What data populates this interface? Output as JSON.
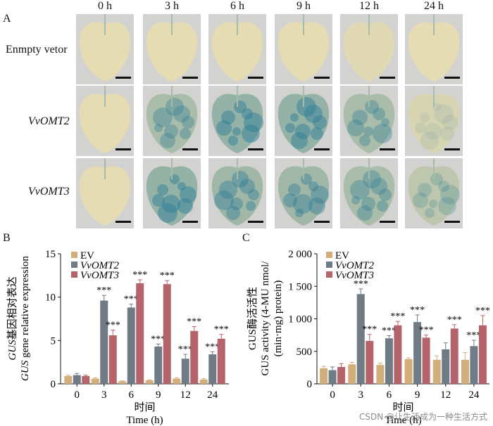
{
  "panel_a": {
    "letter": "A",
    "time_points": [
      "0 h",
      "3 h",
      "6 h",
      "9 h",
      "12 h",
      "24 h"
    ],
    "rows": [
      {
        "label": "Enmpty vetor",
        "italic": false,
        "stain": [
          0,
          0,
          0,
          0,
          0.05,
          0
        ]
      },
      {
        "label": "VvOMT2",
        "italic": true,
        "stain": [
          0,
          0.6,
          0.8,
          0.8,
          0.6,
          0.15
        ]
      },
      {
        "label": "VvOMT3",
        "italic": true,
        "stain": [
          0,
          0.8,
          0.7,
          0.7,
          0.6,
          0.4
        ]
      }
    ],
    "colors": {
      "leaf_unstained": "#e6dcb4",
      "leaf_stained": "#2f7d96",
      "background": "#d2d2d0"
    }
  },
  "chart_data": [
    {
      "panel": "B",
      "type": "bar",
      "title": "",
      "ylabel_cn": "基因相对表达",
      "ylabel_gene": "GUS",
      "ylabel_en": "gene relative expression",
      "xlabel_cn": "时间",
      "xlabel_en": "Time (h)",
      "categories": [
        "0",
        "3",
        "6",
        "9",
        "12",
        "24"
      ],
      "ylim": [
        0,
        15
      ],
      "yticks": [
        "0",
        "5",
        "10",
        "15"
      ],
      "legend": [
        "EV",
        "VvOMT2",
        "VvOMT3"
      ],
      "series": [
        {
          "name": "EV",
          "color": "#d2ae7b",
          "values": [
            0.9,
            0.6,
            0.3,
            0.4,
            0.6,
            0.5
          ],
          "err": [
            0.1,
            0.1,
            0.05,
            0.05,
            0.1,
            0.1
          ],
          "sig": [
            "",
            "",
            "",
            "",
            "",
            ""
          ]
        },
        {
          "name": "VvOMT2",
          "color": "#6f7c86",
          "values": [
            1.0,
            9.6,
            8.8,
            4.3,
            2.9,
            3.4
          ],
          "err": [
            0.2,
            0.6,
            0.4,
            0.3,
            0.5,
            0.3
          ],
          "sig": [
            "",
            "***",
            "***",
            "***",
            "***",
            "***"
          ]
        },
        {
          "name": "VvOMT3",
          "color": "#b4646a",
          "values": [
            0.9,
            5.6,
            11.6,
            11.5,
            6.1,
            5.2
          ],
          "err": [
            0.1,
            0.6,
            0.4,
            0.4,
            0.5,
            0.5
          ],
          "sig": [
            "",
            "***",
            "***",
            "***",
            "***",
            "***"
          ]
        }
      ]
    },
    {
      "panel": "C",
      "type": "bar",
      "title": "",
      "ylabel_cn": "酶活活性",
      "ylabel_gene": "GUS",
      "ylabel_en": "GUS activity (4-MU nmol/",
      "ylabel_en2": "(min·mg) protein)",
      "xlabel_cn": "时间",
      "xlabel_en": "Time (h)",
      "categories": [
        "0",
        "3",
        "6",
        "9",
        "12",
        "24"
      ],
      "ylim": [
        0,
        2000
      ],
      "yticks": [
        "0",
        "500",
        "1 000",
        "1 500",
        "2 000"
      ],
      "legend": [
        "EV",
        "VvOMT2",
        "VvOMT3"
      ],
      "series": [
        {
          "name": "EV",
          "color": "#d2ae7b",
          "values": [
            240,
            300,
            290,
            380,
            370,
            370
          ],
          "err": [
            30,
            30,
            30,
            20,
            60,
            110
          ],
          "sig": [
            "",
            "",
            "",
            "",
            "",
            ""
          ]
        },
        {
          "name": "VvOMT2",
          "color": "#6f7c86",
          "values": [
            210,
            1380,
            700,
            950,
            530,
            580
          ],
          "err": [
            50,
            80,
            40,
            110,
            100,
            90
          ],
          "sig": [
            "",
            "***",
            "***",
            "***",
            "",
            "***"
          ]
        },
        {
          "name": "VvOMT3",
          "color": "#b4646a",
          "values": [
            260,
            660,
            900,
            710,
            850,
            900
          ],
          "err": [
            50,
            100,
            60,
            40,
            60,
            150
          ],
          "sig": [
            "",
            "***",
            "***",
            "***",
            "***",
            "***"
          ]
        }
      ]
    }
  ],
  "watermark": "CSDN @让生活成为一种生活方式"
}
